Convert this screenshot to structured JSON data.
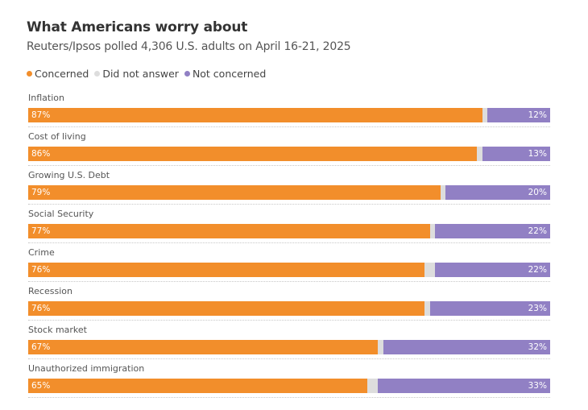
{
  "title": "What Americans worry about",
  "subtitle": "Reuters/Ipsos polled 4,306 U.S. adults on April 16-21, 2025",
  "colors": {
    "concerned": "#F28E2B",
    "no_answer": "#DDDDDD",
    "not_concerned": "#9180C4"
  },
  "legend": [
    {
      "label": "Concerned",
      "key": "concerned"
    },
    {
      "label": "Did not answer",
      "key": "no_answer"
    },
    {
      "label": "Not concerned",
      "key": "not_concerned"
    }
  ],
  "chart_data": {
    "type": "bar",
    "orientation": "horizontal-stacked",
    "title": "What Americans worry about",
    "subtitle": "Reuters/Ipsos polled 4,306 U.S. adults on April 16-21, 2025",
    "categories": [
      "Inflation",
      "Cost of living",
      "Growing U.S. Debt",
      "Social Security",
      "Crime",
      "Recession",
      "Stock market",
      "Unauthorized immigration"
    ],
    "series": [
      {
        "name": "Concerned",
        "values": [
          87,
          86,
          79,
          77,
          76,
          76,
          67,
          65
        ]
      },
      {
        "name": "Did not answer",
        "values": [
          1,
          1,
          1,
          1,
          2,
          1,
          1,
          2
        ]
      },
      {
        "name": "Not concerned",
        "values": [
          12,
          13,
          20,
          22,
          22,
          23,
          32,
          33
        ]
      }
    ],
    "value_suffix": "%",
    "xlim": [
      0,
      100
    ],
    "legend_position": "top-left",
    "grid": false
  }
}
